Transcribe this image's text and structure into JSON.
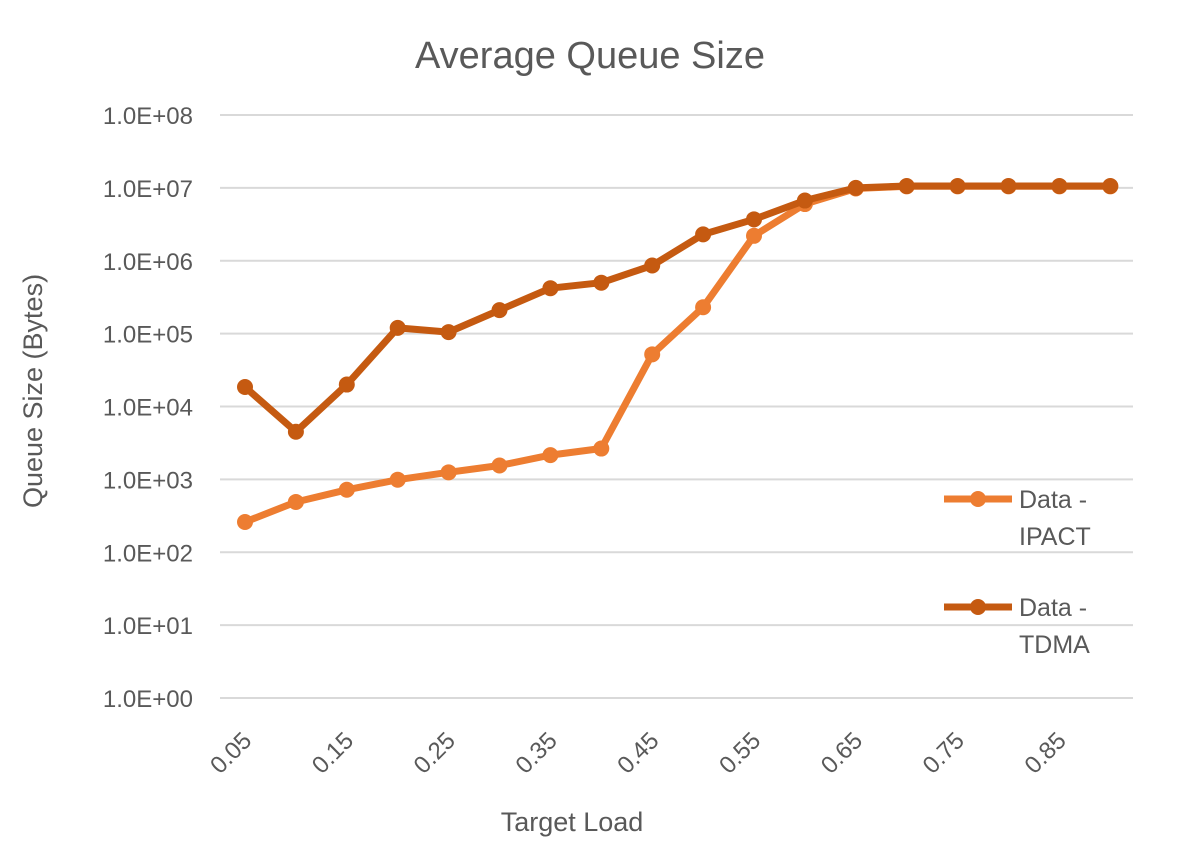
{
  "chart_data": {
    "type": "line",
    "title": "Average Queue Size",
    "xlabel": "Target Load",
    "ylabel": "Queue Size (Bytes)",
    "yscale": "log",
    "ylim": [
      1,
      100000000
    ],
    "y_tick_labels": [
      "1.0E+00",
      "1.0E+01",
      "1.0E+02",
      "1.0E+03",
      "1.0E+04",
      "1.0E+05",
      "1.0E+06",
      "1.0E+07",
      "1.0E+08"
    ],
    "x": [
      0.05,
      0.1,
      0.15,
      0.2,
      0.25,
      0.3,
      0.35,
      0.4,
      0.45,
      0.5,
      0.55,
      0.6,
      0.65,
      0.7,
      0.75,
      0.8,
      0.85,
      0.9
    ],
    "x_tick_labels": [
      "0.05",
      "0.15",
      "0.25",
      "0.35",
      "0.45",
      "0.55",
      "0.65",
      "0.75",
      "0.85"
    ],
    "grid": "horizontal",
    "legend_position": "right",
    "series": [
      {
        "name": "Data - IPACT",
        "legend_lines": [
          "Data -",
          "IPACT"
        ],
        "color": "#ED7D31",
        "values": [
          260,
          490,
          720,
          990,
          1250,
          1550,
          2150,
          2650,
          52000,
          230000,
          2200000,
          6000000,
          9800000,
          10500000,
          10500000,
          10500000,
          10500000,
          10500000
        ]
      },
      {
        "name": "Data - TDMA",
        "legend_lines": [
          "Data -",
          "TDMA"
        ],
        "color": "#C55A11",
        "values": [
          18500,
          4500,
          20000,
          120000,
          105000,
          210000,
          420000,
          500000,
          860000,
          2300000,
          3700000,
          6700000,
          10000000,
          10600000,
          10600000,
          10600000,
          10600000,
          10600000
        ]
      }
    ]
  }
}
